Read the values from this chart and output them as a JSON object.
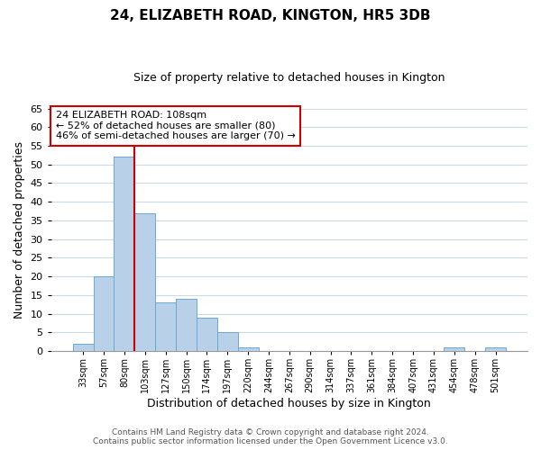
{
  "title": "24, ELIZABETH ROAD, KINGTON, HR5 3DB",
  "subtitle": "Size of property relative to detached houses in Kington",
  "xlabel": "Distribution of detached houses by size in Kington",
  "ylabel": "Number of detached properties",
  "footer_lines": [
    "Contains HM Land Registry data © Crown copyright and database right 2024.",
    "Contains public sector information licensed under the Open Government Licence v3.0."
  ],
  "bin_labels": [
    "33sqm",
    "57sqm",
    "80sqm",
    "103sqm",
    "127sqm",
    "150sqm",
    "174sqm",
    "197sqm",
    "220sqm",
    "244sqm",
    "267sqm",
    "290sqm",
    "314sqm",
    "337sqm",
    "361sqm",
    "384sqm",
    "407sqm",
    "431sqm",
    "454sqm",
    "478sqm",
    "501sqm"
  ],
  "bar_values": [
    2,
    20,
    52,
    37,
    13,
    14,
    9,
    5,
    1,
    0,
    0,
    0,
    0,
    0,
    0,
    0,
    0,
    0,
    1,
    0,
    1
  ],
  "bar_color": "#b8d0e8",
  "bar_edge_color": "#6aaad4",
  "ylim": [
    0,
    65
  ],
  "yticks": [
    0,
    5,
    10,
    15,
    20,
    25,
    30,
    35,
    40,
    45,
    50,
    55,
    60,
    65
  ],
  "vline_color": "#cc0000",
  "annotation_box_text": "24 ELIZABETH ROAD: 108sqm\n← 52% of detached houses are smaller (80)\n46% of semi-detached houses are larger (70) →",
  "annotation_box_color": "#cc0000",
  "annotation_box_facecolor": "white",
  "grid_color": "#c8dce8",
  "plot_bg_color": "white",
  "fig_bg_color": "white"
}
